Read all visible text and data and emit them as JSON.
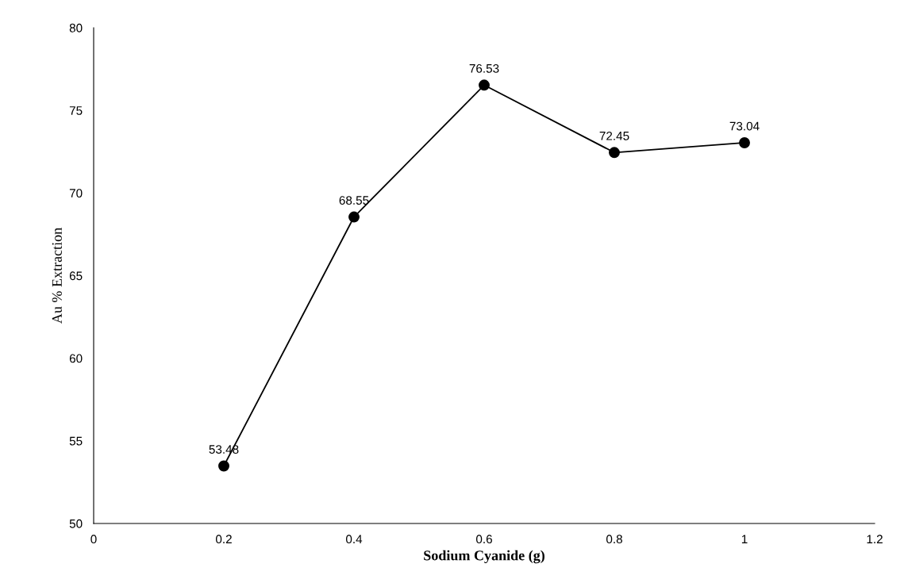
{
  "chart_data": {
    "type": "line",
    "xlabel": "Sodium Cyanide (g)",
    "ylabel": "Au % Extraction",
    "x": [
      0.2,
      0.4,
      0.6,
      0.8,
      1
    ],
    "series": [
      {
        "color": "#000000",
        "values": [
          53.48,
          68.55,
          76.53,
          72.45,
          73.04
        ]
      }
    ],
    "xlim": [
      0,
      1.2
    ],
    "xticks": [
      0,
      0.2,
      0.4,
      0.6,
      0.8,
      1,
      1.2
    ],
    "ylim": [
      50,
      80
    ],
    "yticks": [
      50,
      55,
      60,
      65,
      70,
      75,
      80
    ],
    "marker": "circle",
    "line_style": "solid",
    "grid": false,
    "legend": false,
    "data_labels": true
  }
}
